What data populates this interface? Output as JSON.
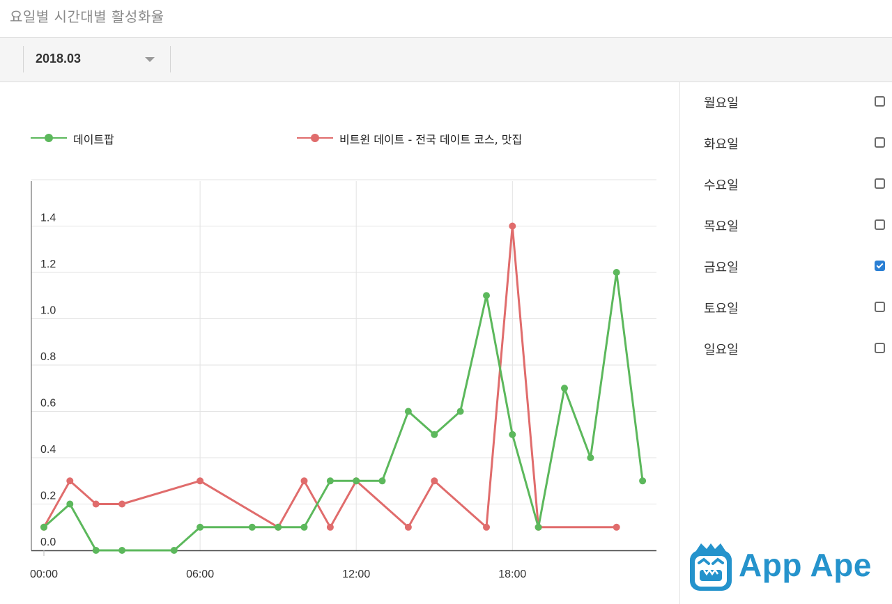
{
  "page": {
    "title": "요일별 시간대별 활성화율"
  },
  "filters": {
    "month": "2018.03"
  },
  "days": [
    {
      "label": "월요일",
      "checked": false
    },
    {
      "label": "화요일",
      "checked": false
    },
    {
      "label": "수요일",
      "checked": false
    },
    {
      "label": "목요일",
      "checked": false
    },
    {
      "label": "금요일",
      "checked": true
    },
    {
      "label": "토요일",
      "checked": false
    },
    {
      "label": "일요일",
      "checked": false
    }
  ],
  "brand": {
    "logo_text": "App Ape",
    "logo_color": "#2593cc"
  },
  "chart_data": {
    "type": "line",
    "x": [
      "00:00",
      "01:00",
      "02:00",
      "03:00",
      "04:00",
      "05:00",
      "06:00",
      "07:00",
      "08:00",
      "09:00",
      "10:00",
      "11:00",
      "12:00",
      "13:00",
      "14:00",
      "15:00",
      "16:00",
      "17:00",
      "18:00",
      "19:00",
      "20:00",
      "21:00",
      "22:00",
      "23:00"
    ],
    "xticks": [
      "00:00",
      "06:00",
      "12:00",
      "18:00"
    ],
    "yticks": [
      "0.0",
      "0.2",
      "0.4",
      "0.6",
      "0.8",
      "1.0",
      "1.2",
      "1.4"
    ],
    "ylim": [
      0,
      1.6
    ],
    "grid": true,
    "legend_position": "top",
    "series": [
      {
        "name": "데이트팝",
        "color": "#5cb85c",
        "values": [
          0.1,
          0.2,
          0,
          0,
          null,
          0,
          0.1,
          null,
          0.1,
          0.1,
          0.1,
          0.3,
          0.3,
          0.3,
          0.6,
          0.5,
          0.6,
          1.1,
          0.5,
          0.1,
          0.7,
          0.4,
          1.2,
          0.3
        ]
      },
      {
        "name": "비트윈 데이트 - 전국 데이트 코스, 맛집",
        "color": "#e06c6c",
        "values": [
          0.1,
          0.3,
          0.2,
          0.2,
          null,
          null,
          0.3,
          null,
          null,
          0.1,
          0.3,
          0.1,
          0.3,
          null,
          0.1,
          0.3,
          null,
          0.1,
          1.4,
          0.1,
          null,
          null,
          0.1,
          null
        ]
      }
    ]
  }
}
